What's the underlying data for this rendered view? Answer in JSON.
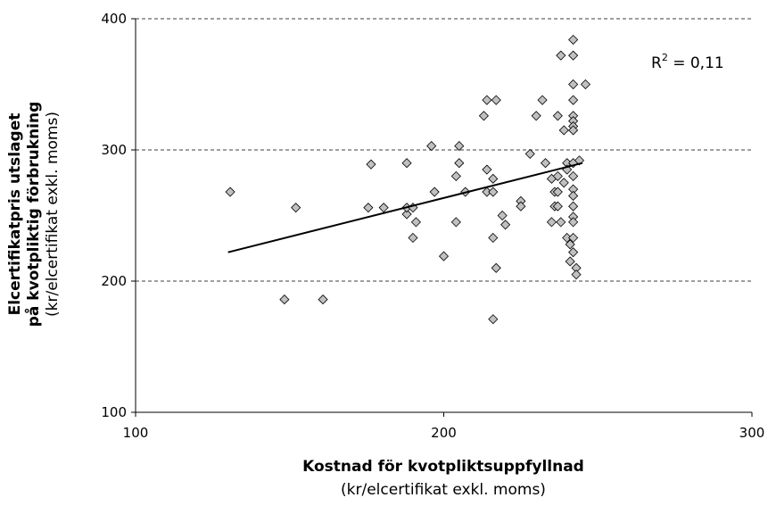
{
  "chart_data": {
    "type": "scatter",
    "ylabel": [
      "Elcertifikatpris utslaget",
      "på kvotpliktig förbrukning",
      "(kr/elcertifikat exkl. moms)"
    ],
    "xlabel": [
      "Kostnad för kvotpliktsuppfyllnad",
      "(kr/elcertifikat exkl. moms)"
    ],
    "xlim": [
      100,
      300
    ],
    "xticks": [
      100,
      200,
      300
    ],
    "ylim": [
      100,
      400
    ],
    "yticks": [
      100,
      200,
      300,
      400
    ],
    "grid": true,
    "color": "#c0c0c0",
    "x": [
      130.7,
      148.3,
      152,
      160.8,
      175.5,
      176.4,
      180.5,
      188,
      188,
      188,
      190,
      190,
      191,
      196,
      197,
      200,
      204,
      204,
      205,
      205,
      207,
      213,
      214,
      214,
      214,
      216,
      216,
      216,
      217,
      216,
      217,
      219,
      220,
      225,
      225,
      228,
      230,
      232,
      233,
      235,
      235,
      236,
      236,
      237,
      237,
      237,
      237,
      238,
      238,
      239,
      239,
      240,
      240,
      240,
      241,
      241,
      242,
      242,
      242,
      242,
      242,
      242,
      242,
      242,
      242,
      242,
      242,
      242,
      242,
      242,
      242,
      242,
      242,
      243,
      243,
      244,
      246
    ],
    "y": [
      268,
      186,
      256,
      186,
      256,
      289,
      256,
      251,
      290,
      256,
      256,
      233,
      245,
      303,
      268,
      219,
      245,
      280,
      290,
      303,
      268,
      326,
      268,
      338,
      285,
      278,
      268,
      233,
      210,
      171,
      338,
      250,
      243,
      261,
      257,
      297,
      326,
      338,
      290,
      278,
      245,
      257,
      268,
      280,
      268,
      257,
      326,
      372,
      245,
      315,
      275,
      233,
      290,
      285,
      228,
      215,
      384,
      372,
      350,
      338,
      326,
      322,
      318,
      315,
      290,
      280,
      270,
      265,
      257,
      249,
      245,
      233,
      222,
      210,
      205,
      292,
      350
    ],
    "trendline": {
      "x": [
        130,
        245
      ],
      "y": [
        222,
        290
      ]
    },
    "annotation": {
      "base": "R",
      "sup": "2",
      "rest": " = 0,11"
    }
  }
}
